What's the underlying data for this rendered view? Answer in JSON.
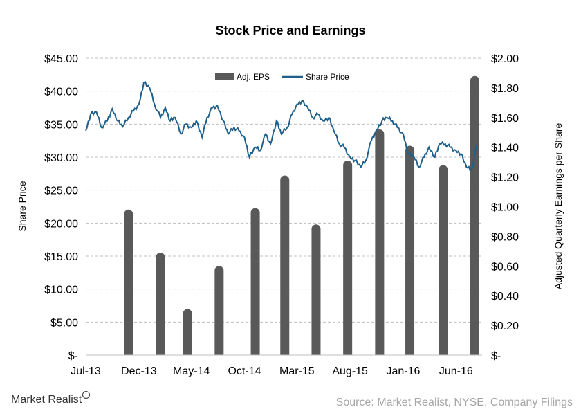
{
  "brand": {
    "name": "Market Realist",
    "icon": "magnifier-icon"
  },
  "source": "Source: Market Realist, NYSE, Company Filings",
  "chart_data": {
    "type": "bar+line",
    "title": "Stock Price and Earnings",
    "left_axis": {
      "label": "Share Price",
      "ylim": [
        0,
        45
      ],
      "ticks": [
        0,
        5,
        10,
        15,
        20,
        25,
        30,
        35,
        40,
        45
      ],
      "tick_labels": [
        "$-",
        "$5.00",
        "$10.00",
        "$15.00",
        "$20.00",
        "$25.00",
        "$30.00",
        "$35.00",
        "$40.00",
        "$45.00"
      ]
    },
    "right_axis": {
      "label": "Adjusted Quarterly Earnings per Share",
      "ylim": [
        0,
        2.0
      ],
      "ticks": [
        0,
        0.2,
        0.4,
        0.6,
        0.8,
        1.0,
        1.2,
        1.4,
        1.6,
        1.8,
        2.0
      ],
      "tick_labels": [
        "$-",
        "$0.20",
        "$0.40",
        "$0.60",
        "$0.80",
        "$1.00",
        "$1.20",
        "$1.40",
        "$1.60",
        "$1.80",
        "$2.00"
      ]
    },
    "x_axis": {
      "range": [
        "2013-07-01",
        "2016-08-15"
      ],
      "tick_dates": [
        "2013-07-01",
        "2013-12-01",
        "2014-05-01",
        "2014-10-01",
        "2015-03-01",
        "2015-08-01",
        "2016-01-01",
        "2016-06-01"
      ],
      "tick_labels": [
        "Jul-13",
        "Dec-13",
        "May-14",
        "Oct-14",
        "Mar-15",
        "Aug-15",
        "Jan-16",
        "Jun-16"
      ]
    },
    "grid": true,
    "legend_position": "top-center",
    "colors": {
      "bars": "#595959",
      "line": "#1f5f8b",
      "grid": "#bfbfbf"
    },
    "series": [
      {
        "name": "Adj. EPS",
        "type": "bar",
        "axis": "right",
        "x": [
          "2013-11-01",
          "2014-02-01",
          "2014-04-20",
          "2014-07-20",
          "2014-11-01",
          "2015-01-25",
          "2015-04-25",
          "2015-07-25",
          "2015-10-25",
          "2016-01-20",
          "2016-04-25",
          "2016-07-25"
        ],
        "values": [
          0.98,
          0.69,
          0.31,
          0.6,
          0.99,
          1.21,
          0.88,
          1.31,
          1.52,
          1.41,
          1.28,
          1.88
        ]
      },
      {
        "name": "Share Price",
        "type": "line",
        "axis": "left",
        "x": [
          "2013-07-01",
          "2013-07-15",
          "2013-08-01",
          "2013-08-15",
          "2013-09-01",
          "2013-09-15",
          "2013-10-01",
          "2013-10-15",
          "2013-11-01",
          "2013-11-15",
          "2013-12-01",
          "2013-12-15",
          "2014-01-01",
          "2014-01-15",
          "2014-02-01",
          "2014-02-15",
          "2014-03-01",
          "2014-03-15",
          "2014-04-01",
          "2014-04-15",
          "2014-05-01",
          "2014-05-15",
          "2014-06-01",
          "2014-06-15",
          "2014-07-01",
          "2014-07-15",
          "2014-08-01",
          "2014-08-15",
          "2014-09-01",
          "2014-09-15",
          "2014-10-01",
          "2014-10-15",
          "2014-11-01",
          "2014-11-15",
          "2014-12-01",
          "2014-12-15",
          "2015-01-01",
          "2015-01-15",
          "2015-02-01",
          "2015-02-15",
          "2015-03-01",
          "2015-03-15",
          "2015-04-01",
          "2015-04-15",
          "2015-05-01",
          "2015-05-15",
          "2015-06-01",
          "2015-06-15",
          "2015-07-01",
          "2015-07-15",
          "2015-08-01",
          "2015-08-15",
          "2015-09-01",
          "2015-09-15",
          "2015-10-01",
          "2015-10-15",
          "2015-11-01",
          "2015-11-15",
          "2015-12-01",
          "2015-12-15",
          "2016-01-01",
          "2016-01-15",
          "2016-02-01",
          "2016-02-15",
          "2016-03-01",
          "2016-03-15",
          "2016-04-01",
          "2016-04-15",
          "2016-05-01",
          "2016-05-15",
          "2016-06-01",
          "2016-06-15",
          "2016-07-01",
          "2016-07-15",
          "2016-08-01"
        ],
        "values": [
          34.0,
          36.5,
          36.8,
          34.5,
          35.5,
          37.3,
          35.5,
          34.6,
          36.0,
          37.0,
          38.0,
          41.3,
          40.5,
          38.0,
          36.0,
          37.5,
          35.5,
          36.0,
          33.5,
          35.0,
          34.5,
          35.5,
          33.0,
          36.0,
          37.5,
          37.8,
          35.5,
          33.5,
          34.5,
          34.0,
          33.0,
          30.0,
          31.5,
          31.0,
          33.5,
          32.0,
          35.5,
          33.5,
          34.5,
          36.5,
          38.0,
          38.5,
          37.5,
          36.0,
          36.5,
          35.5,
          36.0,
          34.0,
          32.0,
          31.5,
          30.0,
          29.5,
          28.5,
          29.5,
          32.5,
          34.0,
          35.5,
          36.0,
          35.5,
          34.5,
          33.5,
          30.5,
          30.0,
          28.5,
          30.0,
          31.5,
          30.0,
          32.0,
          32.0,
          31.5,
          31.0,
          30.5,
          28.5,
          28.0,
          32.0
        ]
      }
    ]
  }
}
